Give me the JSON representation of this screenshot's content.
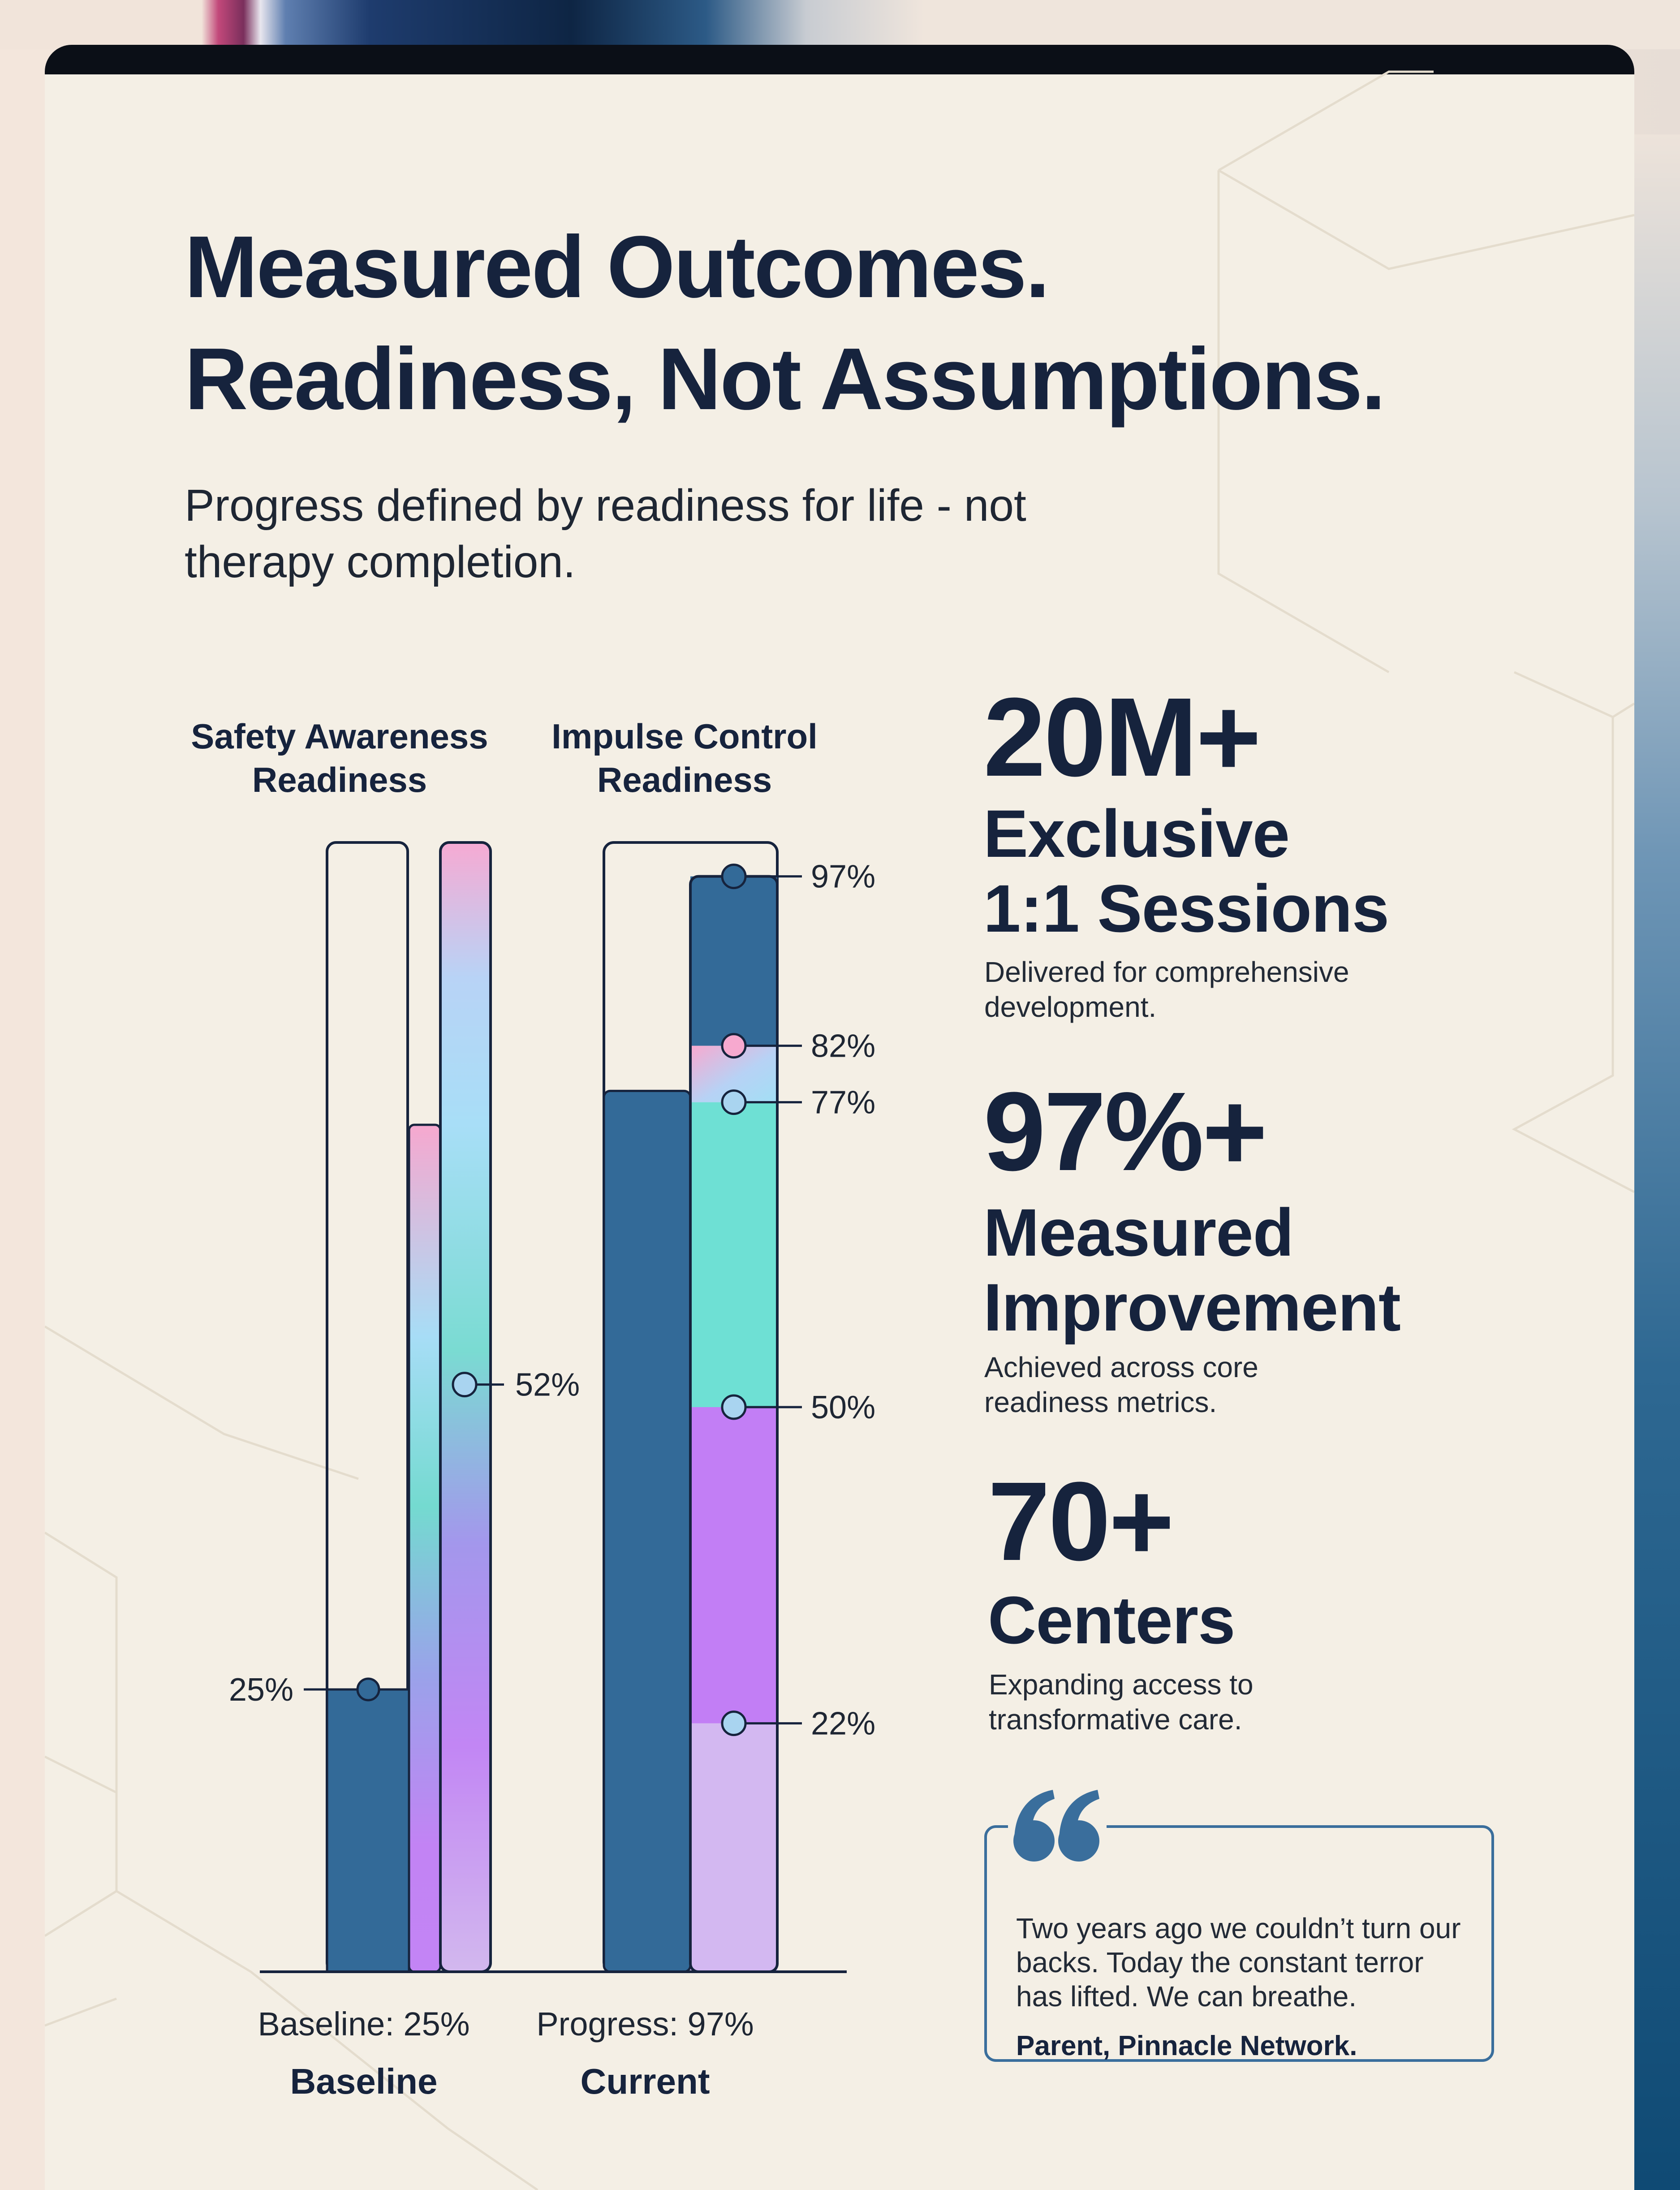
{
  "title_line1": "Measured Outcomes.",
  "title_line2": "Readiness, Not Assumptions.",
  "subtitle": "Progress defined by readiness for life - not therapy completion.",
  "chart_data": {
    "type": "bar",
    "groups": [
      {
        "title_line1": "Safety Awareness",
        "title_line2": "Readiness",
        "value": 25,
        "value_label": "25%",
        "gradient_bar_level": 75,
        "outline_bar_level": 100,
        "marker_value": 52,
        "marker_label": "52%",
        "caption": "Baseline: 25%",
        "category": "Baseline"
      },
      {
        "title_line1": "Impulse Control",
        "title_line2": "Readiness",
        "value": 97,
        "solid_bar_level": 78,
        "segments": [
          {
            "from": 0,
            "to": 22,
            "color": "#d3b8f1"
          },
          {
            "from": 22,
            "to": 50,
            "color": "#c27ef5"
          },
          {
            "from": 50,
            "to": 77,
            "color": "#6ee0d4"
          },
          {
            "from": 77,
            "to": 82,
            "color": "#a8dcf6"
          },
          {
            "from": 82,
            "to": 97,
            "color": "#336a98"
          }
        ],
        "markers": [
          {
            "value": 97,
            "label": "97%"
          },
          {
            "value": 82,
            "label": "82%"
          },
          {
            "value": 77,
            "label": "77%"
          },
          {
            "value": 50,
            "label": "50%"
          },
          {
            "value": 22,
            "label": "22%"
          }
        ],
        "caption": "Progress: 97%",
        "category": "Current"
      }
    ],
    "ylim": [
      0,
      100
    ],
    "colors": {
      "dark_blue": "#336a98",
      "outline": "#16233d",
      "marker_fill": "#a9d4f0"
    }
  },
  "stats": [
    {
      "number": "20M+",
      "label_line1": "Exclusive",
      "label_line2": "1:1 Sessions",
      "desc": "Delivered for comprehensive development."
    },
    {
      "number": "97%+",
      "label_line1": "Measured",
      "label_line2": "Improvement",
      "desc": "Achieved across core readiness metrics."
    },
    {
      "number": "70+",
      "label_line1": "Centers",
      "label_line2": "",
      "desc": "Expanding access to transformative care."
    }
  ],
  "quote": {
    "text": "Two years ago we couldn’t turn our backs. Today the constant terror has lifted. We can breathe.",
    "author": "Parent, Pinnacle Network.",
    "icon": "quote-icon",
    "color": "#3a6e9c"
  }
}
